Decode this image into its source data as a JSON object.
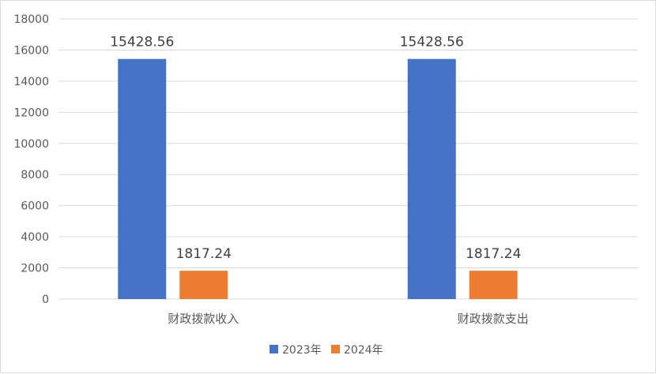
{
  "chart_data": {
    "type": "bar",
    "title": "",
    "xlabel": "",
    "ylabel": "",
    "categories": [
      "财政拨款收入",
      "财政拨款支出"
    ],
    "series": [
      {
        "name": "2023年",
        "values": [
          15428.56,
          15428.56
        ],
        "labels": [
          "15428.56",
          "15428.56"
        ],
        "color": "#4472C4"
      },
      {
        "name": "2024年",
        "values": [
          1817.24,
          1817.24
        ],
        "labels": [
          "1817.24",
          "1817.24"
        ],
        "color": "#ED7D31"
      }
    ],
    "ylim": [
      0,
      18000
    ],
    "yticks": [
      "0",
      "2000",
      "4000",
      "6000",
      "8000",
      "10000",
      "12000",
      "14000",
      "16000",
      "18000"
    ],
    "grid": true,
    "legend": "bottom"
  }
}
